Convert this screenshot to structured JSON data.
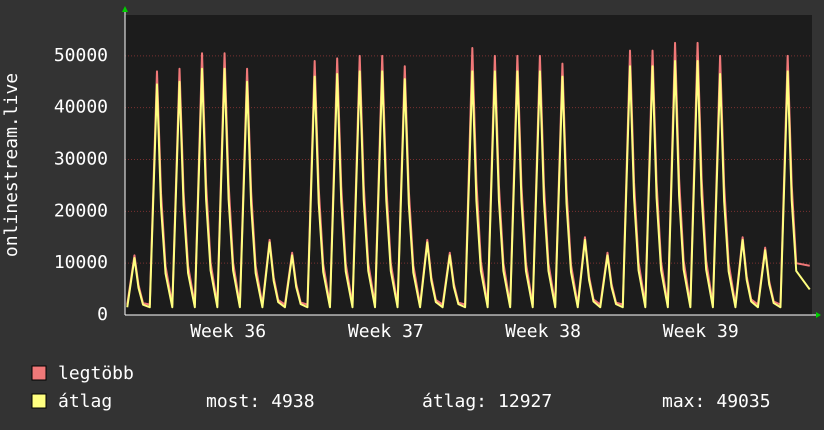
{
  "chart_data": {
    "type": "line",
    "ylabel": "onlinestream.live",
    "x": [
      0.1,
      0.42,
      0.6,
      0.8,
      1.1,
      1.42,
      1.6,
      1.8,
      2.1,
      2.42,
      2.6,
      2.8,
      3.1,
      3.42,
      3.6,
      3.8,
      4.1,
      4.42,
      4.6,
      4.8,
      5.1,
      5.42,
      5.6,
      5.8,
      6.1,
      6.42,
      6.6,
      6.8,
      7.1,
      7.42,
      7.6,
      7.8,
      8.1,
      8.42,
      8.6,
      8.8,
      9.1,
      9.42,
      9.6,
      9.8,
      10.1,
      10.42,
      10.6,
      10.8,
      11.1,
      11.42,
      11.6,
      11.8,
      12.1,
      12.42,
      12.6,
      12.8,
      13.1,
      13.42,
      13.6,
      13.8,
      14.1,
      14.42,
      14.6,
      14.8,
      15.1,
      15.42,
      15.6,
      15.8,
      16.1,
      16.42,
      16.6,
      16.8,
      17.1,
      17.42,
      17.6,
      17.8,
      18.1,
      18.42,
      18.6,
      18.8,
      19.1,
      19.42,
      19.6,
      19.8,
      20.1,
      20.42,
      20.6,
      20.8,
      21.1,
      21.42,
      21.6,
      21.8,
      22.1,
      22.42,
      22.6,
      22.8,
      23.1,
      23.42,
      23.6,
      23.8,
      24.1,
      24.42,
      24.6,
      24.8,
      25.1,
      25.42,
      25.6,
      25.8,
      26.1,
      26.42,
      26.6,
      26.8,
      27.1,
      27.42,
      27.6,
      27.8,
      28.1,
      28.42,
      28.6,
      28.8,
      29.1,
      29.42,
      29.6,
      29.8,
      30.4
    ],
    "series": [
      {
        "name": "legtöbb",
        "color": "#f07878",
        "values": [
          2000,
          11500,
          5800,
          2300,
          2000,
          47000,
          23500,
          9400,
          2000,
          47500,
          23800,
          9500,
          2000,
          50500,
          25300,
          10100,
          2000,
          50500,
          25300,
          10100,
          2000,
          47500,
          23800,
          9500,
          2000,
          14500,
          7300,
          2900,
          2000,
          12000,
          6000,
          2400,
          2000,
          49000,
          24500,
          9800,
          2000,
          49500,
          24800,
          9900,
          2000,
          50000,
          25000,
          10000,
          2000,
          50000,
          25000,
          10000,
          2000,
          48000,
          24000,
          9600,
          2000,
          14500,
          7300,
          2900,
          2000,
          12000,
          6000,
          2400,
          2000,
          51500,
          25800,
          10300,
          2000,
          50000,
          25000,
          10000,
          2000,
          50000,
          25000,
          10000,
          2000,
          50000,
          25000,
          10000,
          2000,
          48500,
          24300,
          9700,
          2000,
          15000,
          7500,
          3000,
          2000,
          12000,
          6000,
          2400,
          2000,
          51000,
          25500,
          10200,
          2000,
          51000,
          25500,
          10200,
          2000,
          52500,
          26300,
          10500,
          2000,
          52500,
          26300,
          10500,
          2000,
          50000,
          25000,
          10000,
          2000,
          15000,
          7500,
          3000,
          2000,
          13000,
          6500,
          2600,
          2000,
          50000,
          25000,
          10000,
          9500
        ]
      },
      {
        "name": "átlag",
        "color": "#ffff80",
        "values": [
          1500,
          11000,
          5200,
          2000,
          1500,
          44500,
          20900,
          8000,
          1500,
          45000,
          21200,
          8100,
          1500,
          47500,
          22300,
          8600,
          1500,
          47500,
          22300,
          8600,
          1500,
          45000,
          21200,
          8100,
          1500,
          14000,
          6600,
          2500,
          1500,
          11500,
          5400,
          2100,
          1500,
          46000,
          21600,
          8300,
          1500,
          46500,
          21900,
          8400,
          1500,
          47000,
          22100,
          8500,
          1500,
          47000,
          22100,
          8500,
          1500,
          45500,
          21400,
          8200,
          1500,
          14000,
          6600,
          2500,
          1500,
          11500,
          5400,
          2100,
          1500,
          47000,
          22100,
          8500,
          1500,
          47000,
          22100,
          8500,
          1500,
          47000,
          22100,
          8500,
          1500,
          47000,
          22100,
          8500,
          1500,
          46000,
          21600,
          8300,
          1500,
          14500,
          6800,
          2600,
          1500,
          11500,
          5400,
          2100,
          1500,
          48000,
          22600,
          8600,
          1500,
          48000,
          22600,
          8600,
          1500,
          49000,
          23000,
          8800,
          1500,
          49000,
          23000,
          8800,
          1500,
          46500,
          21900,
          8400,
          1500,
          14500,
          6800,
          2600,
          1500,
          12500,
          5900,
          2300,
          1500,
          47000,
          22100,
          8500,
          4938
        ]
      }
    ],
    "xlim": [
      0,
      30.5
    ],
    "xticks": [
      {
        "value": 4.58,
        "label": "Week 36"
      },
      {
        "value": 11.58,
        "label": "Week 37"
      },
      {
        "value": 18.56,
        "label": "Week 38"
      },
      {
        "value": 25.56,
        "label": "Week 39"
      }
    ],
    "ylim": [
      0,
      57300
    ],
    "yticks": [
      0,
      10000,
      20000,
      30000,
      40000,
      50000
    ],
    "grid": true,
    "stats": [
      {
        "label": "most:",
        "value": 4938
      },
      {
        "label": "átlag:",
        "value": 12927
      },
      {
        "label": "max:",
        "value": 49035
      }
    ]
  }
}
